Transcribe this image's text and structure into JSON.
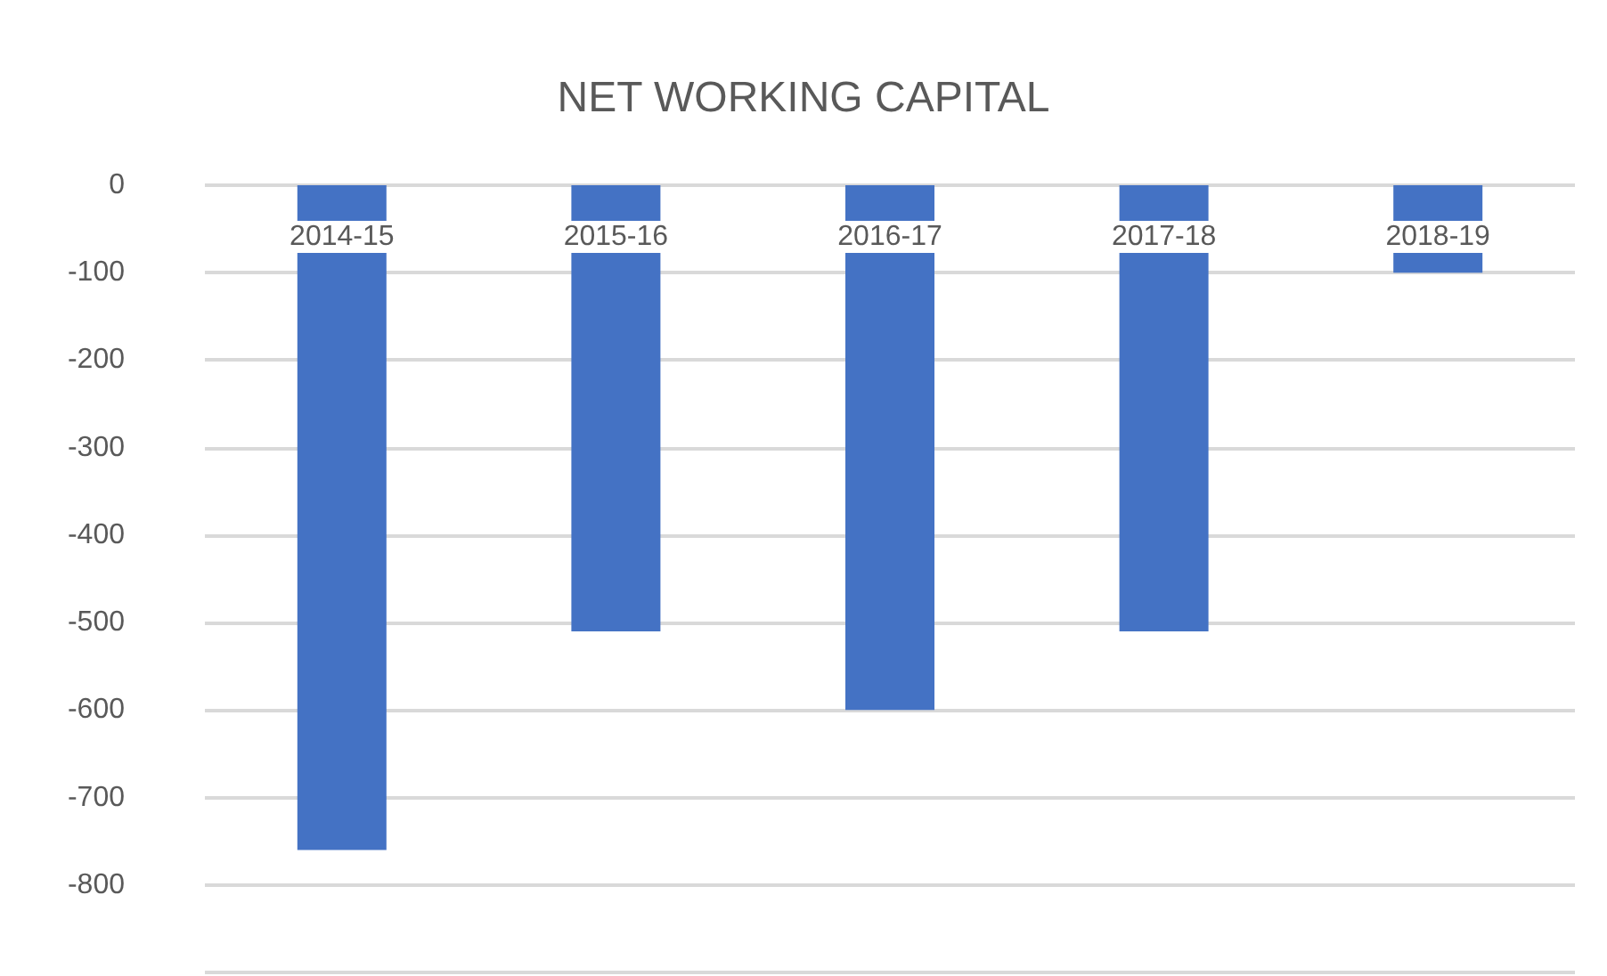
{
  "chart_data": {
    "type": "bar",
    "title": "NET WORKING CAPITAL",
    "categories": [
      "2014-15",
      "2015-16",
      "2016-17",
      "2017-18",
      "2018-19"
    ],
    "values": [
      -760,
      -510,
      -600,
      -510,
      -100
    ],
    "color": "#4472c4",
    "ylim": [
      -900,
      0
    ],
    "yticks": [
      0,
      -100,
      -200,
      -300,
      -400,
      -500,
      -600,
      -700,
      -800,
      {
        "value": -900,
        "label": null
      }
    ],
    "grid": "y"
  }
}
